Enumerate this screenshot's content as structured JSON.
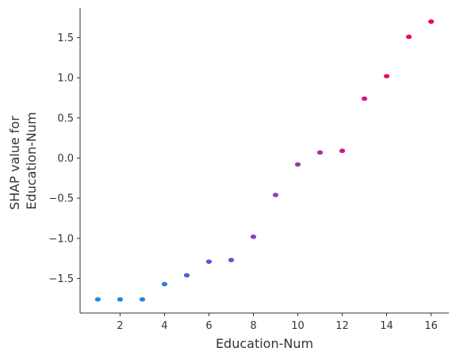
{
  "chart_data": {
    "type": "scatter",
    "title": "",
    "xlabel": "Education-Num",
    "ylabel_lines": [
      "SHAP value for",
      "Education-Num"
    ],
    "xlim": [
      0.2,
      16.8
    ],
    "ylim": [
      -1.93,
      1.87
    ],
    "x_ticks": [
      2,
      4,
      6,
      8,
      10,
      12,
      14,
      16
    ],
    "x_tick_labels": [
      "2",
      "4",
      "6",
      "8",
      "10",
      "12",
      "14",
      "16"
    ],
    "y_ticks": [
      1.5,
      1.0,
      0.5,
      0.0,
      -0.5,
      -1.0,
      -1.5
    ],
    "y_tick_labels": [
      "1.5",
      "1.0",
      "0.5",
      "0.0",
      "−0.5",
      "−1.0",
      "−1.5"
    ],
    "grid": false,
    "points": [
      {
        "x": 1,
        "y": -1.76,
        "color": "#1e88e5"
      },
      {
        "x": 2,
        "y": -1.76,
        "color": "#1e88e5"
      },
      {
        "x": 3,
        "y": -1.76,
        "color": "#1e88e5"
      },
      {
        "x": 4,
        "y": -1.57,
        "color": "#2a7ae2"
      },
      {
        "x": 5,
        "y": -1.46,
        "color": "#4a5fd8"
      },
      {
        "x": 6,
        "y": -1.29,
        "color": "#5b57d0"
      },
      {
        "x": 7,
        "y": -1.27,
        "color": "#6a50c8"
      },
      {
        "x": 8,
        "y": -0.98,
        "color": "#7a48bf"
      },
      {
        "x": 9,
        "y": -0.46,
        "color": "#8a40b5"
      },
      {
        "x": 10,
        "y": -0.08,
        "color": "#9c36a6"
      },
      {
        "x": 11,
        "y": 0.07,
        "color": "#b02e96"
      },
      {
        "x": 12,
        "y": 0.09,
        "color": "#c01e88"
      },
      {
        "x": 13,
        "y": 0.74,
        "color": "#d81478"
      },
      {
        "x": 14,
        "y": 1.02,
        "color": "#e60c6c"
      },
      {
        "x": 15,
        "y": 1.51,
        "color": "#ef0560"
      },
      {
        "x": 16,
        "y": 1.7,
        "color": "#f50057"
      }
    ],
    "colors": {
      "low": "#1e88e5",
      "high": "#ff0052",
      "axis": "#333333"
    }
  }
}
